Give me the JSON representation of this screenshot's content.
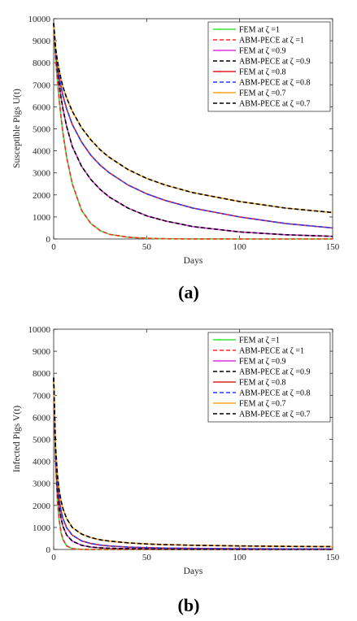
{
  "chart_data": [
    {
      "type": "line",
      "caption": "(a)",
      "xlabel": "Days",
      "ylabel": "Susceptible Pigs U(t)",
      "xlim": [
        0,
        150
      ],
      "ylim": [
        0,
        10000
      ],
      "xticks": [
        "0",
        "50",
        "100",
        "150"
      ],
      "yticks": [
        "0",
        "1000",
        "2000",
        "3000",
        "4000",
        "5000",
        "6000",
        "7000",
        "8000",
        "9000",
        "10000"
      ],
      "grid": false,
      "legend_position": "top-right",
      "x": [
        0,
        1,
        2,
        3,
        4,
        5,
        7,
        10,
        15,
        20,
        25,
        30,
        40,
        50,
        60,
        75,
        100,
        125,
        150
      ],
      "series": [
        {
          "name": "FEM at ζ =1",
          "color": "#33e633",
          "style": "solid",
          "values": [
            9800,
            8200,
            7200,
            6300,
            5500,
            4800,
            3700,
            2500,
            1300,
            700,
            380,
            210,
            80,
            30,
            10,
            3,
            0,
            0,
            0
          ]
        },
        {
          "name": "ABM-PECE at ζ =1",
          "color": "#ff2a2a",
          "style": "dashed",
          "values": [
            9800,
            8200,
            7200,
            6300,
            5500,
            4800,
            3700,
            2500,
            1300,
            700,
            380,
            210,
            80,
            30,
            10,
            3,
            0,
            0,
            0
          ]
        },
        {
          "name": "FEM at ζ =0.9",
          "color": "#dd33dd",
          "style": "solid",
          "values": [
            9800,
            8500,
            7700,
            7000,
            6400,
            5900,
            5100,
            4200,
            3300,
            2700,
            2250,
            1900,
            1400,
            1050,
            820,
            560,
            320,
            190,
            120
          ]
        },
        {
          "name": "ABM-PECE at ζ =0.9",
          "color": "#000000",
          "style": "dashed",
          "values": [
            9800,
            8500,
            7700,
            7000,
            6400,
            5900,
            5100,
            4200,
            3300,
            2700,
            2250,
            1900,
            1400,
            1050,
            820,
            560,
            320,
            190,
            120
          ]
        },
        {
          "name": "FEM at ζ =0.8",
          "color": "#dd2222",
          "style": "solid",
          "values": [
            9800,
            8600,
            7900,
            7350,
            6900,
            6500,
            5900,
            5200,
            4400,
            3800,
            3350,
            3000,
            2450,
            2050,
            1750,
            1400,
            1000,
            700,
            500
          ]
        },
        {
          "name": "ABM-PECE at ζ =0.8",
          "color": "#2a3cf0",
          "style": "dashed",
          "values": [
            9800,
            8600,
            7900,
            7350,
            6900,
            6500,
            5900,
            5200,
            4400,
            3800,
            3350,
            3000,
            2450,
            2050,
            1750,
            1400,
            1000,
            700,
            500
          ]
        },
        {
          "name": "FEM at ζ =0.7",
          "color": "#f5a623",
          "style": "solid",
          "values": [
            9800,
            8700,
            8100,
            7650,
            7250,
            6900,
            6400,
            5800,
            5050,
            4500,
            4050,
            3700,
            3150,
            2750,
            2450,
            2100,
            1700,
            1400,
            1200
          ]
        },
        {
          "name": "ABM-PECE at ζ =0.7",
          "color": "#000000",
          "style": "dashed",
          "values": [
            9800,
            8700,
            8100,
            7650,
            7250,
            6900,
            6400,
            5800,
            5050,
            4500,
            4050,
            3700,
            3150,
            2750,
            2450,
            2100,
            1700,
            1400,
            1200
          ]
        }
      ]
    },
    {
      "type": "line",
      "caption": "(b)",
      "xlabel": "Days",
      "ylabel": "Infected Pigs V(t)",
      "xlim": [
        0,
        150
      ],
      "ylim": [
        0,
        10000
      ],
      "xticks": [
        "0",
        "50",
        "100",
        "150"
      ],
      "yticks": [
        "0",
        "1000",
        "2000",
        "3000",
        "4000",
        "5000",
        "6000",
        "7000",
        "8000",
        "9000",
        "10000"
      ],
      "grid": false,
      "legend_position": "top-right",
      "x": [
        0,
        1,
        2,
        3,
        4,
        5,
        7,
        10,
        15,
        20,
        25,
        30,
        40,
        50,
        60,
        75,
        100,
        125,
        150
      ],
      "series": [
        {
          "name": "FEM at ζ =1",
          "color": "#33e633",
          "style": "solid",
          "values": [
            7800,
            4000,
            2200,
            1300,
            750,
            450,
            160,
            40,
            5,
            0,
            0,
            0,
            0,
            0,
            0,
            0,
            0,
            0,
            0
          ]
        },
        {
          "name": "ABM-PECE at ζ =1",
          "color": "#ff2a2a",
          "style": "dashed",
          "values": [
            7800,
            4000,
            2200,
            1300,
            750,
            450,
            160,
            40,
            5,
            0,
            0,
            0,
            0,
            0,
            0,
            0,
            0,
            0,
            0
          ]
        },
        {
          "name": "FEM at ζ =0.9",
          "color": "#dd33dd",
          "style": "solid",
          "values": [
            7800,
            4200,
            2700,
            1900,
            1400,
            1050,
            650,
            380,
            190,
            110,
            75,
            55,
            35,
            25,
            18,
            12,
            8,
            5,
            4
          ]
        },
        {
          "name": "ABM-PECE at ζ =0.9",
          "color": "#000000",
          "style": "dashed",
          "values": [
            7800,
            4200,
            2700,
            1900,
            1400,
            1050,
            650,
            380,
            190,
            110,
            75,
            55,
            35,
            25,
            18,
            12,
            8,
            5,
            4
          ]
        },
        {
          "name": "FEM at ζ =0.8",
          "color": "#dd2222",
          "style": "solid",
          "values": [
            7800,
            4400,
            3000,
            2250,
            1750,
            1400,
            980,
            650,
            390,
            270,
            200,
            160,
            110,
            80,
            65,
            50,
            35,
            27,
            22
          ]
        },
        {
          "name": "ABM-PECE at ζ =0.8",
          "color": "#2a3cf0",
          "style": "dashed",
          "values": [
            7800,
            4400,
            3000,
            2250,
            1750,
            1400,
            980,
            650,
            390,
            270,
            200,
            160,
            110,
            80,
            65,
            50,
            35,
            27,
            22
          ]
        },
        {
          "name": "FEM at ζ =0.7",
          "color": "#f5a623",
          "style": "solid",
          "values": [
            7800,
            4700,
            3400,
            2650,
            2200,
            1850,
            1400,
            1000,
            700,
            540,
            440,
            380,
            300,
            250,
            220,
            190,
            160,
            140,
            130
          ]
        },
        {
          "name": "ABM-PECE at ζ =0.7",
          "color": "#000000",
          "style": "dashed",
          "values": [
            7800,
            4700,
            3400,
            2650,
            2200,
            1850,
            1400,
            1000,
            700,
            540,
            440,
            380,
            300,
            250,
            220,
            190,
            160,
            140,
            130
          ]
        }
      ]
    }
  ]
}
